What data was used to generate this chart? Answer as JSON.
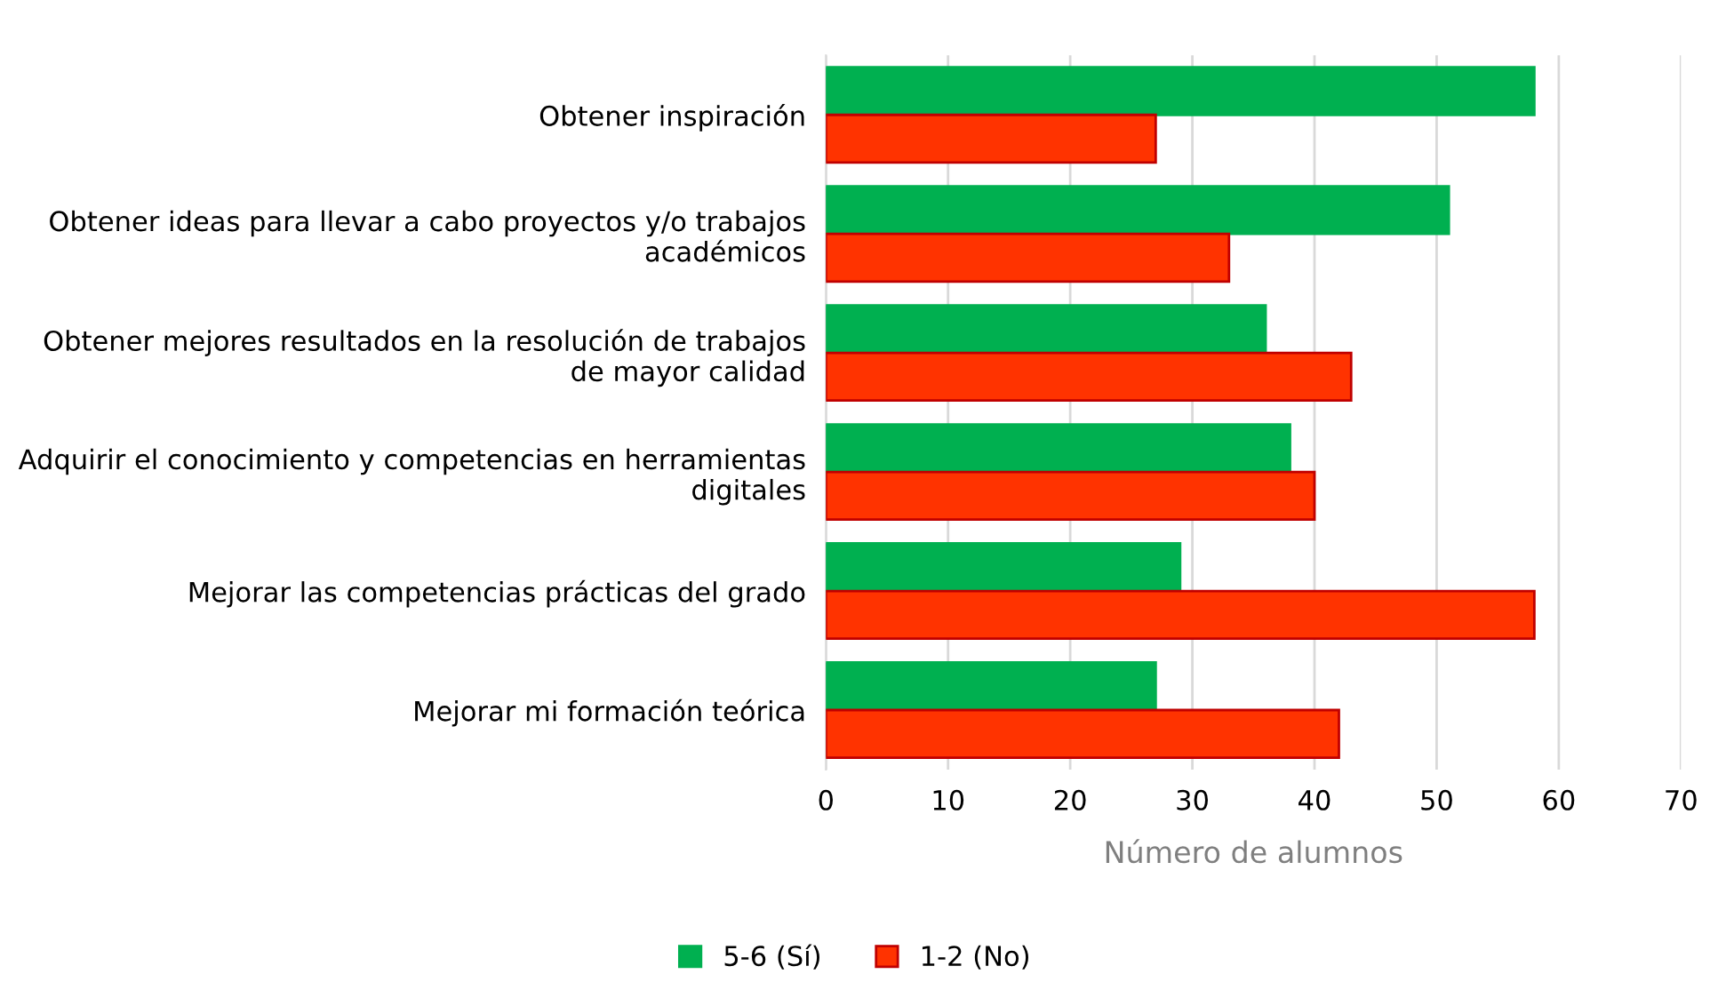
{
  "chart_data": {
    "type": "bar",
    "orientation": "horizontal",
    "categories": [
      "Obtener inspiración",
      "Obtener ideas para llevar a cabo proyectos y/o trabajos académicos",
      "Obtener mejores resultados en la resolución de trabajos de mayor calidad",
      "Adquirir el conocimiento y competencias en herramientas digitales",
      "Mejorar las competencias prácticas del grado",
      "Mejorar mi formación teórica"
    ],
    "series": [
      {
        "name": "5-6 (Sí)",
        "color": "#00b050",
        "values": [
          58,
          51,
          36,
          38,
          29,
          27
        ]
      },
      {
        "name": "1-2 (No)",
        "color": "#ff3300",
        "values": [
          27,
          33,
          43,
          40,
          58,
          42
        ]
      }
    ],
    "xlabel": "Número de alumnos",
    "xlim": [
      0,
      70
    ],
    "xticks": [
      0,
      10,
      20,
      30,
      40,
      50,
      60,
      70
    ],
    "grid": "x",
    "legend": "bottom"
  }
}
